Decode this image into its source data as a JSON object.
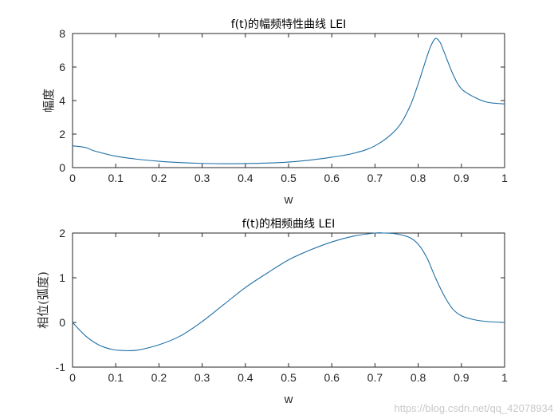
{
  "colors": {
    "line": "#1f6fa5",
    "axis": "#262626"
  },
  "watermark": "https://blog.csdn.net/qq_42078934",
  "chart_data": [
    {
      "type": "line",
      "title": "f(t)的幅频特性曲线 LEI",
      "xlabel": "w",
      "ylabel": "幅度",
      "xlim": [
        0,
        1
      ],
      "ylim": [
        0,
        8
      ],
      "xticks": [
        0,
        0.1,
        0.2,
        0.3,
        0.4,
        0.5,
        0.6,
        0.7,
        0.8,
        0.9,
        1
      ],
      "xtick_labels": [
        "0",
        "0.1",
        "0.2",
        "0.3",
        "0.4",
        "0.5",
        "0.6",
        "0.7",
        "0.8",
        "0.9",
        "1"
      ],
      "yticks": [
        0,
        2,
        4,
        6,
        8
      ],
      "ytick_labels": [
        "0",
        "2",
        "4",
        "6",
        "8"
      ],
      "series": [
        {
          "x": [
            0,
            0.03,
            0.05,
            0.1,
            0.15,
            0.2,
            0.25,
            0.3,
            0.35,
            0.4,
            0.45,
            0.5,
            0.55,
            0.6,
            0.65,
            0.7,
            0.75,
            0.78,
            0.8,
            0.82,
            0.83,
            0.84,
            0.85,
            0.86,
            0.88,
            0.9,
            0.93,
            0.96,
            1.0
          ],
          "y": [
            1.3,
            1.2,
            1.0,
            0.68,
            0.5,
            0.38,
            0.3,
            0.25,
            0.23,
            0.24,
            0.27,
            0.33,
            0.45,
            0.62,
            0.85,
            1.3,
            2.3,
            3.6,
            5.0,
            6.6,
            7.3,
            7.7,
            7.5,
            6.9,
            5.6,
            4.7,
            4.2,
            3.9,
            3.8
          ]
        }
      ]
    },
    {
      "type": "line",
      "title": "f(t)的相频曲线 LEI",
      "xlabel": "w",
      "ylabel": "相位(弧度)",
      "xlim": [
        0,
        1
      ],
      "ylim": [
        -1,
        2
      ],
      "xticks": [
        0,
        0.1,
        0.2,
        0.3,
        0.4,
        0.5,
        0.6,
        0.7,
        0.8,
        0.9,
        1
      ],
      "xtick_labels": [
        "0",
        "0.1",
        "0.2",
        "0.3",
        "0.4",
        "0.5",
        "0.6",
        "0.7",
        "0.8",
        "0.9",
        "1"
      ],
      "yticks": [
        -1,
        0,
        1,
        2
      ],
      "ytick_labels": [
        "-1",
        "0",
        "1",
        "2"
      ],
      "series": [
        {
          "x": [
            0,
            0.03,
            0.06,
            0.09,
            0.12,
            0.15,
            0.2,
            0.25,
            0.3,
            0.35,
            0.4,
            0.45,
            0.5,
            0.55,
            0.6,
            0.65,
            0.7,
            0.72,
            0.75,
            0.78,
            0.8,
            0.82,
            0.84,
            0.86,
            0.88,
            0.9,
            0.93,
            0.96,
            1.0
          ],
          "y": [
            0.0,
            -0.3,
            -0.5,
            -0.6,
            -0.63,
            -0.62,
            -0.5,
            -0.3,
            0.02,
            0.4,
            0.78,
            1.1,
            1.4,
            1.62,
            1.8,
            1.93,
            2.0,
            2.0,
            1.98,
            1.9,
            1.75,
            1.45,
            1.0,
            0.6,
            0.3,
            0.15,
            0.06,
            0.02,
            0.0
          ]
        }
      ]
    }
  ]
}
